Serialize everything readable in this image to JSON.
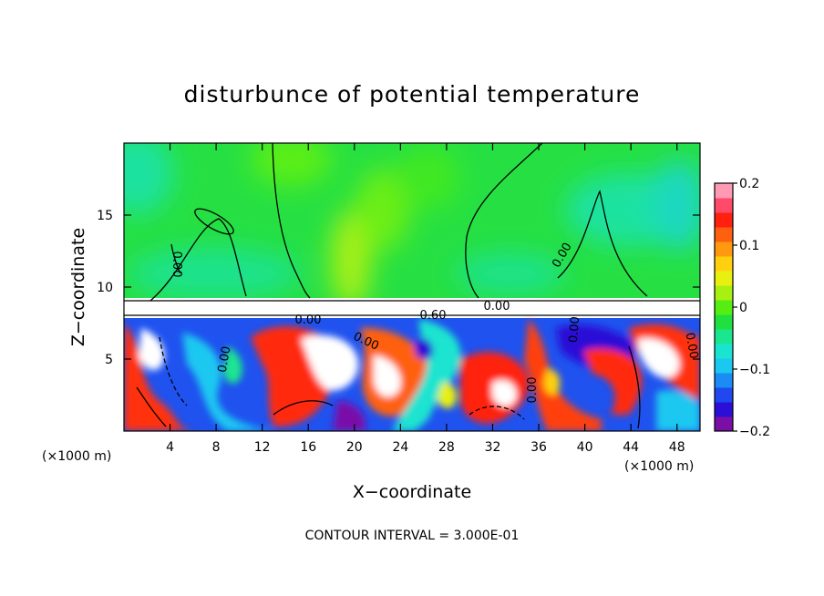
{
  "chart_data": {
    "type": "heatmap",
    "title": "disturbunce of potential temperature",
    "xlabel": "X−coordinate",
    "ylabel": "Z−coordinate",
    "x_unit_left": "(×1000 m)",
    "x_unit_right": "(×1000 m)",
    "xlim": [
      0,
      50
    ],
    "ylim": [
      0,
      20
    ],
    "x_ticks": [
      4,
      8,
      12,
      16,
      20,
      24,
      28,
      32,
      36,
      40,
      44,
      48
    ],
    "x_tick_labels": [
      "4",
      "8",
      "12",
      "16",
      "20",
      "24",
      "28",
      "32",
      "36",
      "40",
      "44",
      "48"
    ],
    "y_ticks": [
      5,
      10,
      15
    ],
    "y_tick_labels": [
      "5",
      "10",
      "15"
    ],
    "colorbar": {
      "range": [
        -0.2,
        0.2
      ],
      "ticks": [
        0.2,
        0.1,
        0,
        -0.1,
        -0.2
      ],
      "tick_labels": [
        "0.2",
        "0.1",
        "0",
        "−0.1",
        "−0.2"
      ],
      "colors": [
        "#7a0fa8",
        "#2b0fd6",
        "#1f48ef",
        "#1a8cf4",
        "#1ac8f0",
        "#1ae4d0",
        "#1ae690",
        "#20e040",
        "#56ee12",
        "#a8f012",
        "#e8f010",
        "#ffd010",
        "#ff9a10",
        "#ff6010",
        "#ff2010",
        "#ff4a6a",
        "#ff9ab4"
      ]
    },
    "contour_interval": "CONTOUR INTERVAL = 3.000E-01",
    "contour_labels": [
      "0.00",
      "0.00",
      "0.00",
      "0.00",
      "0.00",
      "0.00",
      "0.00",
      "0.00",
      "0.00",
      "0.60"
    ]
  }
}
